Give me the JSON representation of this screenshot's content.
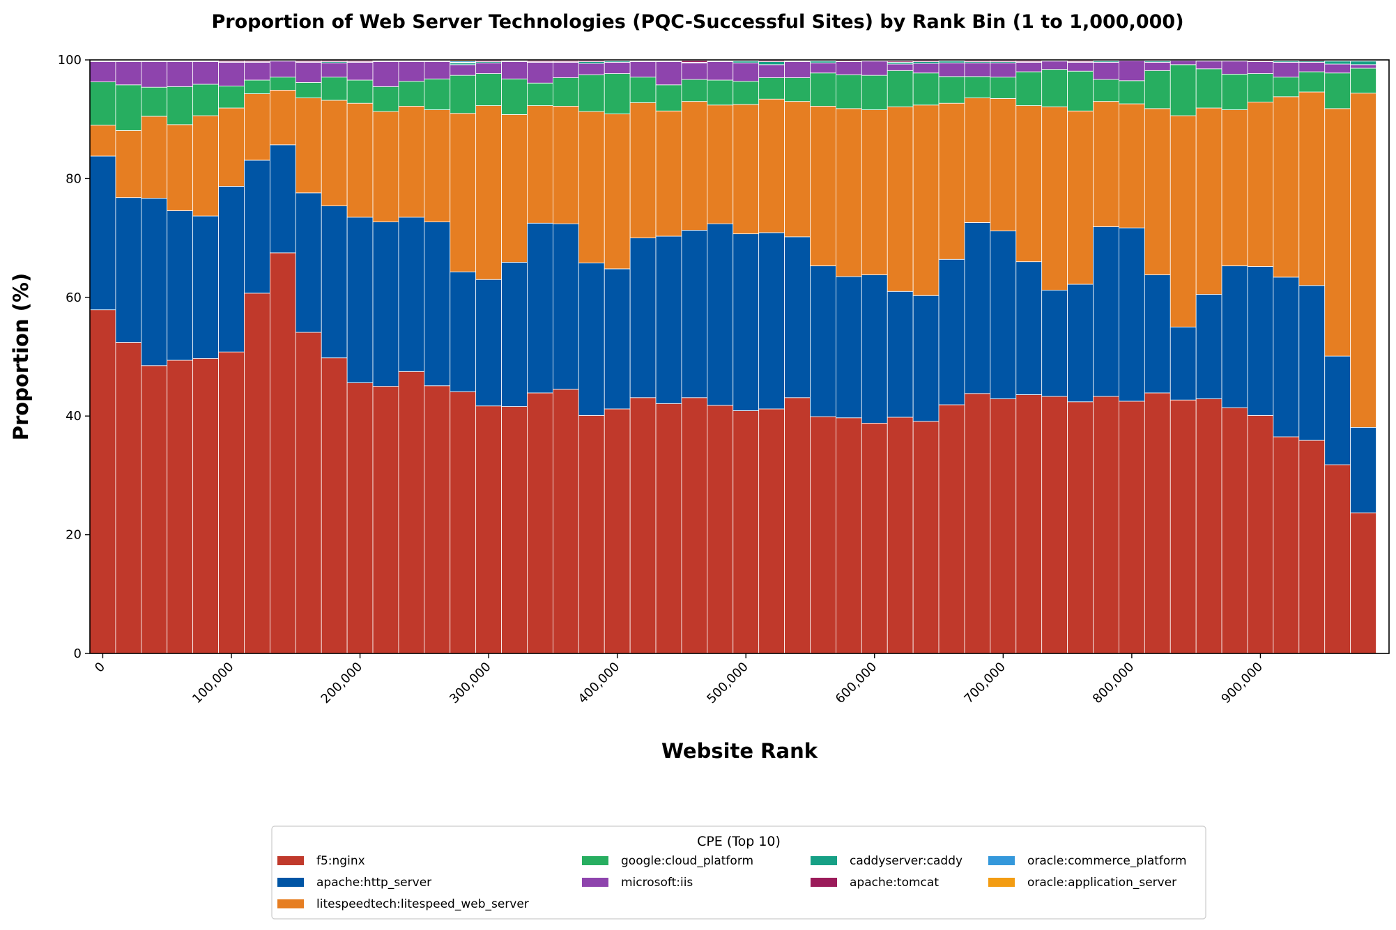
{
  "chart_data": {
    "type": "bar",
    "stacked": true,
    "title": "Proportion of Web Server Technologies (PQC-Successful Sites) by Rank Bin (1 to 1,000,000)",
    "xlabel": "Website Rank",
    "ylabel": "Proportion (%)",
    "ylim": [
      0,
      100
    ],
    "yticks": [
      0,
      20,
      40,
      60,
      80,
      100
    ],
    "xlim": [
      -10000,
      1000000
    ],
    "xticks": [
      0,
      100000,
      200000,
      300000,
      400000,
      500000,
      600000,
      700000,
      800000,
      900000
    ],
    "xtick_labels": [
      "0",
      "100,000",
      "200,000",
      "300,000",
      "400,000",
      "500,000",
      "600,000",
      "700,000",
      "800,000",
      "900,000"
    ],
    "bin_width": 20000,
    "x": [
      0,
      20000,
      40000,
      60000,
      80000,
      100000,
      120000,
      140000,
      160000,
      180000,
      200000,
      220000,
      240000,
      260000,
      280000,
      300000,
      320000,
      340000,
      360000,
      380000,
      400000,
      420000,
      440000,
      460000,
      480000,
      500000,
      520000,
      540000,
      560000,
      580000,
      600000,
      620000,
      640000,
      660000,
      680000,
      700000,
      720000,
      740000,
      760000,
      780000,
      800000,
      820000,
      840000,
      860000,
      880000,
      900000,
      920000,
      940000,
      960000,
      980000
    ],
    "series": [
      {
        "name": "f5:nginx",
        "color": "#c0392b",
        "values": [
          57.9,
          52.4,
          48.5,
          49.4,
          49.7,
          50.8,
          60.7,
          67.5,
          54.1,
          49.8,
          45.6,
          45.0,
          47.5,
          45.1,
          44.1,
          41.7,
          41.6,
          43.9,
          44.5,
          40.1,
          41.2,
          43.1,
          42.1,
          43.1,
          41.8,
          40.9,
          41.2,
          43.1,
          39.9,
          39.7,
          38.8,
          39.8,
          39.1,
          41.9,
          43.8,
          42.9,
          43.6,
          43.3,
          42.4,
          43.3,
          42.5,
          43.9,
          42.7,
          42.9,
          41.4,
          40.1,
          36.5,
          35.9,
          31.8,
          23.7
        ]
      },
      {
        "name": "apache:http_server",
        "color": "#0055a5",
        "values": [
          25.9,
          24.4,
          28.2,
          25.2,
          24.0,
          27.9,
          22.4,
          18.2,
          23.5,
          25.6,
          27.9,
          27.7,
          26.0,
          27.6,
          20.2,
          21.3,
          24.3,
          28.6,
          27.9,
          25.7,
          23.6,
          26.9,
          28.2,
          28.2,
          30.6,
          29.8,
          29.7,
          27.1,
          25.4,
          23.8,
          25.0,
          21.2,
          21.2,
          24.5,
          28.8,
          28.3,
          22.4,
          17.9,
          19.8,
          28.6,
          29.2,
          19.9,
          12.3,
          17.6,
          23.9,
          25.1,
          26.9,
          26.1,
          18.3,
          14.4
        ]
      },
      {
        "name": "litespeedtech:litespeed_web_server",
        "color": "#e67e22",
        "values": [
          5.2,
          11.3,
          13.8,
          14.5,
          16.9,
          13.2,
          11.2,
          9.2,
          16.0,
          17.8,
          19.2,
          18.6,
          18.7,
          18.9,
          26.7,
          29.3,
          24.9,
          19.8,
          19.8,
          25.5,
          26.1,
          22.8,
          21.1,
          21.7,
          20.0,
          21.8,
          22.5,
          22.8,
          26.9,
          28.3,
          27.8,
          31.1,
          32.1,
          26.3,
          21.0,
          22.3,
          26.3,
          30.9,
          29.2,
          21.1,
          20.9,
          28.0,
          35.6,
          31.4,
          26.3,
          27.7,
          30.4,
          32.6,
          41.7,
          56.3
        ]
      },
      {
        "name": "google:cloud_platform",
        "color": "#27ae60",
        "values": [
          7.3,
          7.7,
          4.9,
          6.4,
          5.3,
          3.7,
          2.3,
          2.2,
          2.6,
          3.9,
          3.9,
          4.2,
          4.2,
          5.2,
          6.4,
          5.4,
          6.0,
          3.8,
          4.8,
          6.2,
          6.8,
          4.3,
          4.4,
          3.7,
          4.2,
          3.9,
          3.6,
          4.0,
          5.6,
          5.7,
          5.8,
          6.1,
          5.4,
          4.5,
          3.6,
          3.6,
          5.7,
          6.3,
          6.7,
          3.7,
          3.9,
          6.4,
          8.6,
          6.6,
          6.0,
          4.8,
          3.3,
          3.4,
          6.0,
          4.2
        ]
      },
      {
        "name": "microsoft:iis",
        "color": "#8e44ad",
        "values": [
          3.4,
          3.9,
          4.3,
          4.2,
          3.8,
          4.0,
          3.0,
          2.7,
          3.4,
          2.4,
          3.0,
          4.2,
          3.3,
          2.9,
          1.8,
          1.8,
          2.9,
          3.5,
          2.6,
          1.9,
          1.9,
          2.6,
          3.9,
          2.8,
          3.1,
          3.1,
          2.2,
          2.7,
          1.7,
          2.2,
          2.4,
          1.1,
          1.6,
          2.3,
          2.3,
          2.4,
          1.6,
          1.4,
          1.5,
          2.9,
          3.4,
          1.4,
          0.7,
          1.3,
          2.2,
          2.0,
          2.5,
          1.6,
          1.5,
          0.6
        ]
      },
      {
        "name": "caddyserver:caddy",
        "color": "#16a085",
        "values": [
          0.1,
          0.1,
          0.1,
          0.1,
          0.1,
          0.1,
          0.1,
          0.1,
          0.1,
          0.2,
          0.1,
          0.1,
          0.1,
          0.1,
          0.3,
          0.2,
          0.1,
          0.1,
          0.1,
          0.3,
          0.2,
          0.1,
          0.1,
          0.1,
          0.1,
          0.3,
          0.5,
          0.1,
          0.3,
          0.1,
          0.1,
          0.3,
          0.3,
          0.3,
          0.2,
          0.2,
          0.1,
          0.1,
          0.1,
          0.2,
          0.1,
          0.2,
          0.1,
          0.1,
          0.1,
          0.1,
          0.2,
          0.2,
          0.5,
          0.6
        ]
      },
      {
        "name": "apache:tomcat",
        "color": "#9b1b5a",
        "values": [
          0.1,
          0.1,
          0.1,
          0.1,
          0.1,
          0.2,
          0.2,
          0.1,
          0.2,
          0.2,
          0.2,
          0.1,
          0.1,
          0.1,
          0.1,
          0.2,
          0.1,
          0.2,
          0.2,
          0.2,
          0.1,
          0.1,
          0.1,
          0.3,
          0.1,
          0.1,
          0.2,
          0.1,
          0.1,
          0.2,
          0.1,
          0.2,
          0.2,
          0.1,
          0.2,
          0.2,
          0.2,
          0.1,
          0.2,
          0.1,
          0.0,
          0.1,
          0.0,
          0.1,
          0.1,
          0.2,
          0.1,
          0.2,
          0.1,
          0.1
        ]
      },
      {
        "name": "oracle:commerce_platform",
        "color": "#3498db",
        "values": [
          0.05,
          0.05,
          0.05,
          0.05,
          0.05,
          0.05,
          0.05,
          0.0,
          0.05,
          0.05,
          0.05,
          0.05,
          0.05,
          0.05,
          0.2,
          0.05,
          0.05,
          0.05,
          0.05,
          0.05,
          0.05,
          0.05,
          0.05,
          0.05,
          0.05,
          0.05,
          0.05,
          0.05,
          0.05,
          0.0,
          0.0,
          0.1,
          0.05,
          0.05,
          0.05,
          0.05,
          0.05,
          0.0,
          0.05,
          0.05,
          0.0,
          0.05,
          0.0,
          0.0,
          0.0,
          0.0,
          0.05,
          0.0,
          0.05,
          0.05
        ]
      },
      {
        "name": "oracle:application_server",
        "color": "#f39c12",
        "values": [
          0.05,
          0.05,
          0.05,
          0.05,
          0.05,
          0.05,
          0.05,
          0.0,
          0.05,
          0.05,
          0.05,
          0.05,
          0.05,
          0.05,
          0.2,
          0.05,
          0.05,
          0.05,
          0.05,
          0.05,
          0.05,
          0.05,
          0.05,
          0.05,
          0.05,
          0.05,
          0.05,
          0.05,
          0.05,
          0.0,
          0.0,
          0.1,
          0.05,
          0.05,
          0.05,
          0.05,
          0.05,
          0.0,
          0.05,
          0.05,
          0.0,
          0.05,
          0.0,
          0.0,
          0.0,
          0.0,
          0.05,
          0.0,
          0.05,
          0.05
        ]
      }
    ],
    "legend": {
      "title": "CPE (Top 10)",
      "placement": "below",
      "columns": 4
    },
    "grid": false
  }
}
